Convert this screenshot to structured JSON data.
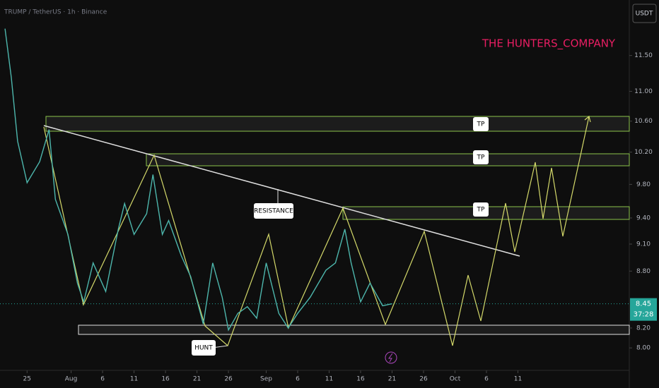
{
  "header": {
    "symbol": "TRUMP / TetherUS · 1h · Binance",
    "currency": "USDT",
    "watermark": "THE HUNTERS_COMPANY"
  },
  "chart_data": {
    "type": "line",
    "color": "#4db6ac",
    "y_scale": "log",
    "x": [
      -3.5,
      -2.5,
      -1.5,
      0,
      2,
      3.5,
      4.5,
      6.5,
      8,
      9,
      10.5,
      12.5,
      14.5,
      15.5,
      17,
      19,
      20,
      21.5,
      22.5,
      24.5,
      26,
      28,
      29.5,
      31,
      32,
      33.5,
      35,
      36.5,
      38,
      40,
      41.5,
      43,
      45,
      47.5,
      49,
      50.5,
      51.5,
      53,
      54.5,
      56.5,
      58
    ],
    "values": [
      11.89,
      11.19,
      10.34,
      9.82,
      10.08,
      10.49,
      9.62,
      9.21,
      8.67,
      8.47,
      8.89,
      8.58,
      9.27,
      9.57,
      9.21,
      9.45,
      9.92,
      9.21,
      9.37,
      8.97,
      8.74,
      8.24,
      8.89,
      8.52,
      8.18,
      8.35,
      8.42,
      8.3,
      8.89,
      8.35,
      8.2,
      8.35,
      8.52,
      8.81,
      8.89,
      9.27,
      8.89,
      8.47,
      8.67,
      8.43,
      8.45
    ],
    "xlim": [
      -4.3,
      95.7
    ],
    "xticks": [
      {
        "value": 0,
        "label": "25"
      },
      {
        "value": 7,
        "label": "Aug"
      },
      {
        "value": 12,
        "label": "6"
      },
      {
        "value": 17,
        "label": "11"
      },
      {
        "value": 22,
        "label": "16"
      },
      {
        "value": 27,
        "label": "21"
      },
      {
        "value": 32,
        "label": "26"
      },
      {
        "value": 38,
        "label": "Sep"
      },
      {
        "value": 43,
        "label": "6"
      },
      {
        "value": 48,
        "label": "11"
      },
      {
        "value": 53,
        "label": "16"
      },
      {
        "value": 58,
        "label": "21"
      },
      {
        "value": 63,
        "label": "26"
      },
      {
        "value": 68,
        "label": "Oct"
      },
      {
        "value": 73,
        "label": "6"
      },
      {
        "value": 78,
        "label": "11"
      }
    ],
    "ylim": [
      7.78,
      12.32
    ],
    "yticks": [
      {
        "value": 11.5,
        "label": "11.50"
      },
      {
        "value": 11,
        "label": "11.00"
      },
      {
        "value": 10.6,
        "label": "10.60"
      },
      {
        "value": 10.2,
        "label": "10.20"
      },
      {
        "value": 9.8,
        "label": "9.80"
      },
      {
        "value": 9.4,
        "label": "9.40"
      },
      {
        "value": 9.1,
        "label": "9.10"
      },
      {
        "value": 8.8,
        "label": "8.80"
      },
      {
        "value": 8.2,
        "label": "8.20"
      },
      {
        "value": 8,
        "label": "8.00"
      }
    ],
    "last_price": 8.45,
    "countdown": "37:28",
    "annotations": [
      "TP",
      "TP",
      "TP",
      "RESISTANCE",
      "HUNT"
    ]
  }
}
